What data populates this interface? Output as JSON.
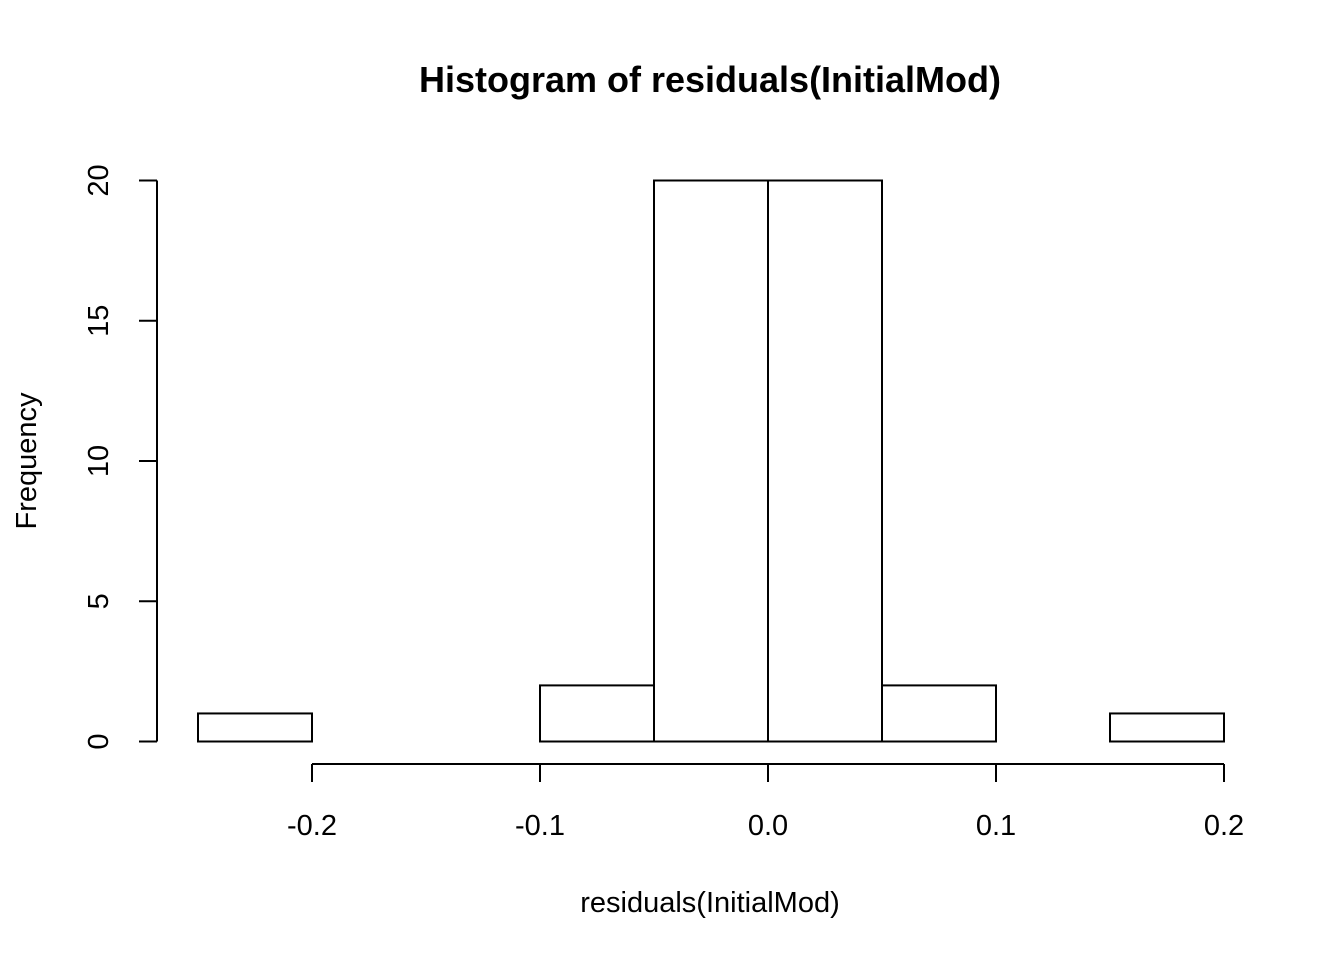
{
  "chart_data": {
    "type": "bar",
    "title": "Histogram of residuals(InitialMod)",
    "xlabel": "residuals(InitialMod)",
    "ylabel": "Frequency",
    "bins": [
      {
        "start": -0.25,
        "end": -0.2,
        "count": 1
      },
      {
        "start": -0.2,
        "end": -0.15,
        "count": 0
      },
      {
        "start": -0.15,
        "end": -0.1,
        "count": 0
      },
      {
        "start": -0.1,
        "end": -0.05,
        "count": 2
      },
      {
        "start": -0.05,
        "end": 0.0,
        "count": 20
      },
      {
        "start": 0.0,
        "end": 0.05,
        "count": 20
      },
      {
        "start": 0.05,
        "end": 0.1,
        "count": 2
      },
      {
        "start": 0.1,
        "end": 0.15,
        "count": 0
      },
      {
        "start": 0.15,
        "end": 0.2,
        "count": 1
      }
    ],
    "xticks": [
      -0.2,
      -0.1,
      0.0,
      0.1,
      0.2
    ],
    "xtick_labels": [
      "-0.2",
      "-0.1",
      "0.0",
      "0.1",
      "0.2"
    ],
    "yticks": [
      0,
      5,
      10,
      15,
      20
    ],
    "ytick_labels": [
      "0",
      "5",
      "10",
      "15",
      "20"
    ],
    "xlim": [
      -0.25,
      0.2
    ],
    "ylim": [
      0,
      20
    ],
    "grid": false,
    "bar_fill": "#ffffff",
    "bar_stroke": "#000000"
  }
}
